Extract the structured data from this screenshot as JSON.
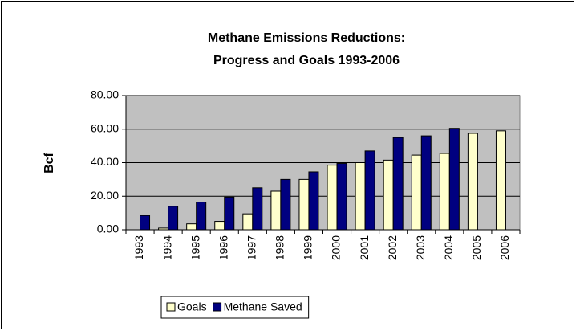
{
  "chart_data": {
    "type": "bar",
    "title": [
      "Methane Emissions Reductions:",
      "Progress and Goals 1993-2006"
    ],
    "y_label": "Bcf",
    "categories": [
      "1993",
      "1994",
      "1995",
      "1996",
      "1997",
      "1998",
      "1999",
      "2000",
      "2001",
      "2002",
      "2003",
      "2004",
      "2005",
      "2006"
    ],
    "series": [
      {
        "name": "Goals",
        "color": "#ffffcc",
        "values": [
          0,
          1,
          3.5,
          5,
          9.5,
          23,
          30,
          38.5,
          40,
          41.5,
          44.5,
          45.5,
          57.5,
          59
        ]
      },
      {
        "name": "Methane Saved",
        "color": "#000080",
        "values": [
          8.5,
          14,
          16.5,
          19.5,
          25,
          30,
          34.5,
          39.5,
          47,
          55,
          56,
          60.5,
          null,
          null
        ]
      }
    ],
    "ylim": [
      0,
      80
    ],
    "yticks": [
      {
        "value": 0,
        "label": "0.00"
      },
      {
        "value": 20,
        "label": "20.00"
      },
      {
        "value": 40,
        "label": "40.00"
      },
      {
        "value": 60,
        "label": "60.00"
      },
      {
        "value": 80,
        "label": "80.00"
      }
    ],
    "grid": true,
    "plot_background": "#c0c0c0",
    "legend": "bottom"
  }
}
